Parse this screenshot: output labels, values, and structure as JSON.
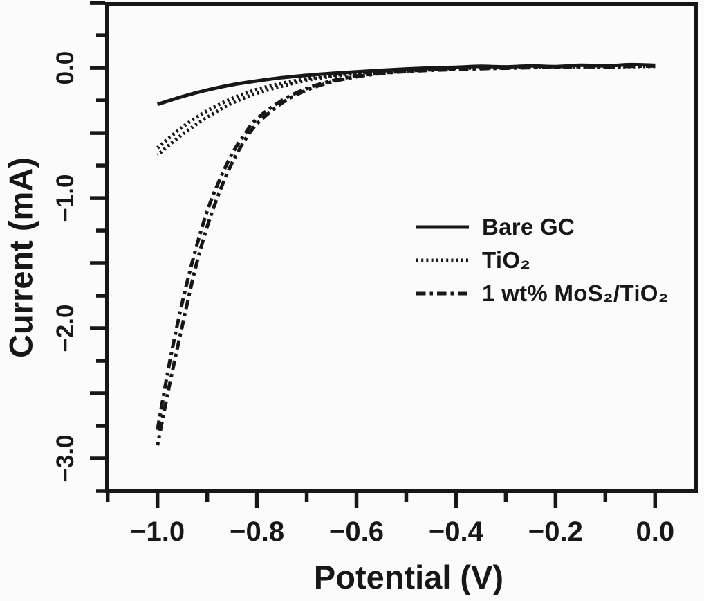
{
  "figure": {
    "background_color": "#fbfbfb",
    "ink_color": "#171717"
  },
  "chart_data": {
    "type": "line",
    "title": "",
    "xlabel": "Potential (V)",
    "ylabel": "Current (mA)",
    "xlim": [
      -1.101,
      0.083
    ],
    "ylim": [
      -3.25,
      0.49
    ],
    "grid": false,
    "x_axis": {
      "major_ticks": [
        -1.0,
        -0.8,
        -0.6,
        -0.4,
        -0.2,
        0.0
      ],
      "major_tick_labels": [
        "−1.0",
        "−0.8",
        "−0.6",
        "−0.4",
        "−0.2",
        "0.0"
      ],
      "minor_ticks": [
        -1.1,
        -0.9,
        -0.7,
        -0.5,
        -0.3,
        -0.1
      ]
    },
    "y_axis": {
      "major_ticks": [
        0.5,
        0.0,
        -0.5,
        -1.0,
        -1.5,
        -2.0,
        -2.5,
        -3.0
      ],
      "labeled_ticks": [
        0.0,
        -1.0,
        -2.0,
        -3.0
      ],
      "labeled_tick_labels": [
        "0.0",
        "−1.0",
        "−2.0",
        "−3.0"
      ],
      "minor_ticks": [
        0.25,
        -0.25,
        -0.75,
        -1.25,
        -1.75,
        -2.25,
        -2.75,
        -3.25
      ]
    },
    "legend": {
      "position": "center-right",
      "items": [
        {
          "label": "Bare GC",
          "style": "solid"
        },
        {
          "label": "TiO₂",
          "style": "dotted"
        },
        {
          "label": "1 wt% MoS₂/TiO₂",
          "style": "dashdot"
        }
      ]
    },
    "series": [
      {
        "id": "bare-gc",
        "name": "Bare GC",
        "style": "solid",
        "points": [
          [
            0.0,
            0.02
          ],
          [
            -0.05,
            0.025
          ],
          [
            -0.1,
            0.015
          ],
          [
            -0.15,
            0.02
          ],
          [
            -0.2,
            0.01
          ],
          [
            -0.25,
            0.015
          ],
          [
            -0.3,
            0.008
          ],
          [
            -0.35,
            0.012
          ],
          [
            -0.4,
            0.005
          ],
          [
            -0.45,
            0.0
          ],
          [
            -0.5,
            -0.008
          ],
          [
            -0.55,
            -0.018
          ],
          [
            -0.6,
            -0.03
          ],
          [
            -0.65,
            -0.042
          ],
          [
            -0.7,
            -0.057
          ],
          [
            -0.75,
            -0.075
          ],
          [
            -0.8,
            -0.1
          ],
          [
            -0.85,
            -0.13
          ],
          [
            -0.9,
            -0.17
          ],
          [
            -0.95,
            -0.22
          ],
          [
            -1.0,
            -0.28
          ]
        ]
      },
      {
        "id": "tio2",
        "name": "TiO₂",
        "style": "dotted",
        "points": [
          [
            0.0,
            0.012
          ],
          [
            -0.05,
            0.01
          ],
          [
            -0.1,
            0.006
          ],
          [
            -0.15,
            0.008
          ],
          [
            -0.2,
            0.004
          ],
          [
            -0.25,
            0.006
          ],
          [
            -0.3,
            0.0
          ],
          [
            -0.35,
            0.0
          ],
          [
            -0.4,
            -0.004
          ],
          [
            -0.45,
            -0.008
          ],
          [
            -0.5,
            -0.014
          ],
          [
            -0.55,
            -0.025
          ],
          [
            -0.6,
            -0.043
          ],
          [
            -0.65,
            -0.065
          ],
          [
            -0.7,
            -0.095
          ],
          [
            -0.75,
            -0.14
          ],
          [
            -0.8,
            -0.195
          ],
          [
            -0.85,
            -0.27
          ],
          [
            -0.9,
            -0.38
          ],
          [
            -0.95,
            -0.51
          ],
          [
            -1.0,
            -0.67
          ]
        ],
        "points_return": [
          [
            -1.0,
            -0.615
          ],
          [
            -0.95,
            -0.455
          ],
          [
            -0.9,
            -0.33
          ],
          [
            -0.85,
            -0.235
          ],
          [
            -0.8,
            -0.165
          ],
          [
            -0.75,
            -0.118
          ],
          [
            -0.7,
            -0.083
          ],
          [
            -0.65,
            -0.058
          ],
          [
            -0.6,
            -0.038
          ],
          [
            -0.55,
            -0.022
          ],
          [
            -0.5,
            -0.012
          ],
          [
            -0.45,
            -0.006
          ],
          [
            -0.4,
            -0.002
          ]
        ]
      },
      {
        "id": "mos2-tio2",
        "name": "1 wt% MoS₂/TiO₂",
        "style": "dashdot",
        "points": [
          [
            0.0,
            0.015
          ],
          [
            -0.05,
            0.012
          ],
          [
            -0.1,
            0.008
          ],
          [
            -0.15,
            0.01
          ],
          [
            -0.2,
            0.005
          ],
          [
            -0.25,
            0.002
          ],
          [
            -0.3,
            -0.002
          ],
          [
            -0.35,
            -0.006
          ],
          [
            -0.4,
            -0.012
          ],
          [
            -0.45,
            -0.018
          ],
          [
            -0.5,
            -0.028
          ],
          [
            -0.55,
            -0.042
          ],
          [
            -0.6,
            -0.068
          ],
          [
            -0.65,
            -0.108
          ],
          [
            -0.7,
            -0.17
          ],
          [
            -0.75,
            -0.27
          ],
          [
            -0.8,
            -0.43
          ],
          [
            -0.825,
            -0.56
          ],
          [
            -0.85,
            -0.73
          ],
          [
            -0.875,
            -0.95
          ],
          [
            -0.9,
            -1.22
          ],
          [
            -0.925,
            -1.56
          ],
          [
            -0.95,
            -1.98
          ],
          [
            -0.975,
            -2.42
          ],
          [
            -1.0,
            -2.9
          ]
        ],
        "points_return": [
          [
            -1.0,
            -2.78
          ],
          [
            -0.975,
            -2.25
          ],
          [
            -0.95,
            -1.8
          ],
          [
            -0.925,
            -1.42
          ],
          [
            -0.9,
            -1.1
          ],
          [
            -0.875,
            -0.86
          ],
          [
            -0.85,
            -0.66
          ],
          [
            -0.825,
            -0.51
          ],
          [
            -0.8,
            -0.39
          ],
          [
            -0.75,
            -0.25
          ],
          [
            -0.7,
            -0.158
          ],
          [
            -0.65,
            -0.1
          ],
          [
            -0.6,
            -0.062
          ],
          [
            -0.55,
            -0.04
          ],
          [
            -0.5,
            -0.024
          ],
          [
            -0.45,
            -0.014
          ],
          [
            -0.4,
            -0.008
          ]
        ]
      }
    ]
  }
}
